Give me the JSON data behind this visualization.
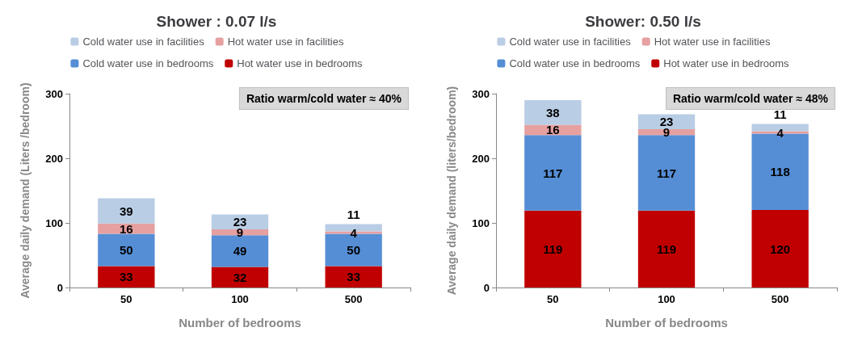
{
  "chart_data": [
    {
      "type": "bar",
      "title": "Shower : 0.07 l/s",
      "xlabel": "Number of bedrooms",
      "ylabel": "Average daily demand (Liters /bedroom)",
      "annotations": [
        "Ratio warm/cold water ≈ 40%"
      ],
      "categories": [
        "50",
        "100",
        "500"
      ],
      "stacked": true,
      "data_labels": true,
      "legend": "top",
      "grid": false,
      "ylim": [
        0,
        300
      ],
      "yticks": [
        0,
        100,
        200,
        300
      ],
      "series": [
        {
          "name": "Hot water use in bedrooms",
          "color": "#c00000",
          "values": [
            33,
            32,
            33
          ]
        },
        {
          "name": "Cold water use in bedrooms",
          "color": "#558ed5",
          "values": [
            50,
            49,
            50
          ]
        },
        {
          "name": "Hot water use in facilities",
          "color": "#e6a0a0",
          "values": [
            16,
            9,
            4
          ]
        },
        {
          "name": "Cold water use in facilities",
          "color": "#b9cde5",
          "values": [
            39,
            23,
            11
          ]
        }
      ]
    },
    {
      "type": "bar",
      "title": "Shower: 0.50 l/s",
      "xlabel": "Number of bedrooms",
      "ylabel": "Average daily demand (liters/bedroom)",
      "annotations": [
        "Ratio warm/cold water ≈ 48%"
      ],
      "categories": [
        "50",
        "100",
        "500"
      ],
      "stacked": true,
      "data_labels": true,
      "legend": "top",
      "grid": false,
      "ylim": [
        0,
        300
      ],
      "yticks": [
        0,
        100,
        200,
        300
      ],
      "series": [
        {
          "name": "Hot water use in bedrooms",
          "color": "#c00000",
          "values": [
            119,
            119,
            120
          ]
        },
        {
          "name": "Cold water use in bedrooms",
          "color": "#558ed5",
          "values": [
            117,
            117,
            118
          ]
        },
        {
          "name": "Hot water use in facilities",
          "color": "#e6a0a0",
          "values": [
            16,
            9,
            4
          ]
        },
        {
          "name": "Cold water use in facilities",
          "color": "#b9cde5",
          "values": [
            38,
            23,
            11
          ]
        }
      ]
    }
  ]
}
